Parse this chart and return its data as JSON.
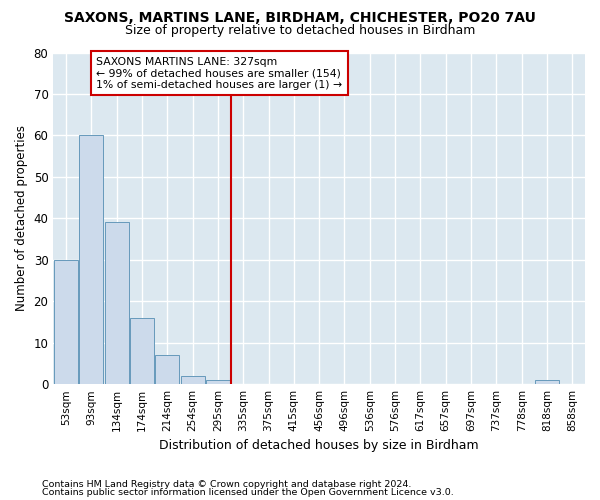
{
  "title": "SAXONS, MARTINS LANE, BIRDHAM, CHICHESTER, PO20 7AU",
  "subtitle": "Size of property relative to detached houses in Birdham",
  "xlabel": "Distribution of detached houses by size in Birdham",
  "ylabel": "Number of detached properties",
  "bar_values": [
    30,
    60,
    39,
    16,
    7,
    2,
    1,
    0,
    0,
    0,
    0,
    0,
    0,
    0,
    0,
    0,
    0,
    0,
    0,
    1,
    0
  ],
  "bar_labels": [
    "53sqm",
    "93sqm",
    "134sqm",
    "174sqm",
    "214sqm",
    "254sqm",
    "295sqm",
    "335sqm",
    "375sqm",
    "415sqm",
    "456sqm",
    "496sqm",
    "536sqm",
    "576sqm",
    "617sqm",
    "657sqm",
    "697sqm",
    "737sqm",
    "778sqm",
    "818sqm",
    "858sqm"
  ],
  "bar_color": "#ccdaeb",
  "bar_edge_color": "#6699bb",
  "background_color": "#ffffff",
  "plot_bg_color": "#dce8f0",
  "grid_color": "#ffffff",
  "ylim": [
    0,
    80
  ],
  "yticks": [
    0,
    10,
    20,
    30,
    40,
    50,
    60,
    70,
    80
  ],
  "vline_x": 7,
  "vline_color": "#cc0000",
  "annotation_title": "SAXONS MARTINS LANE: 327sqm",
  "annotation_line1": "← 99% of detached houses are smaller (154)",
  "annotation_line2": "1% of semi-detached houses are larger (1) →",
  "footer_line1": "Contains HM Land Registry data © Crown copyright and database right 2024.",
  "footer_line2": "Contains public sector information licensed under the Open Government Licence v3.0."
}
